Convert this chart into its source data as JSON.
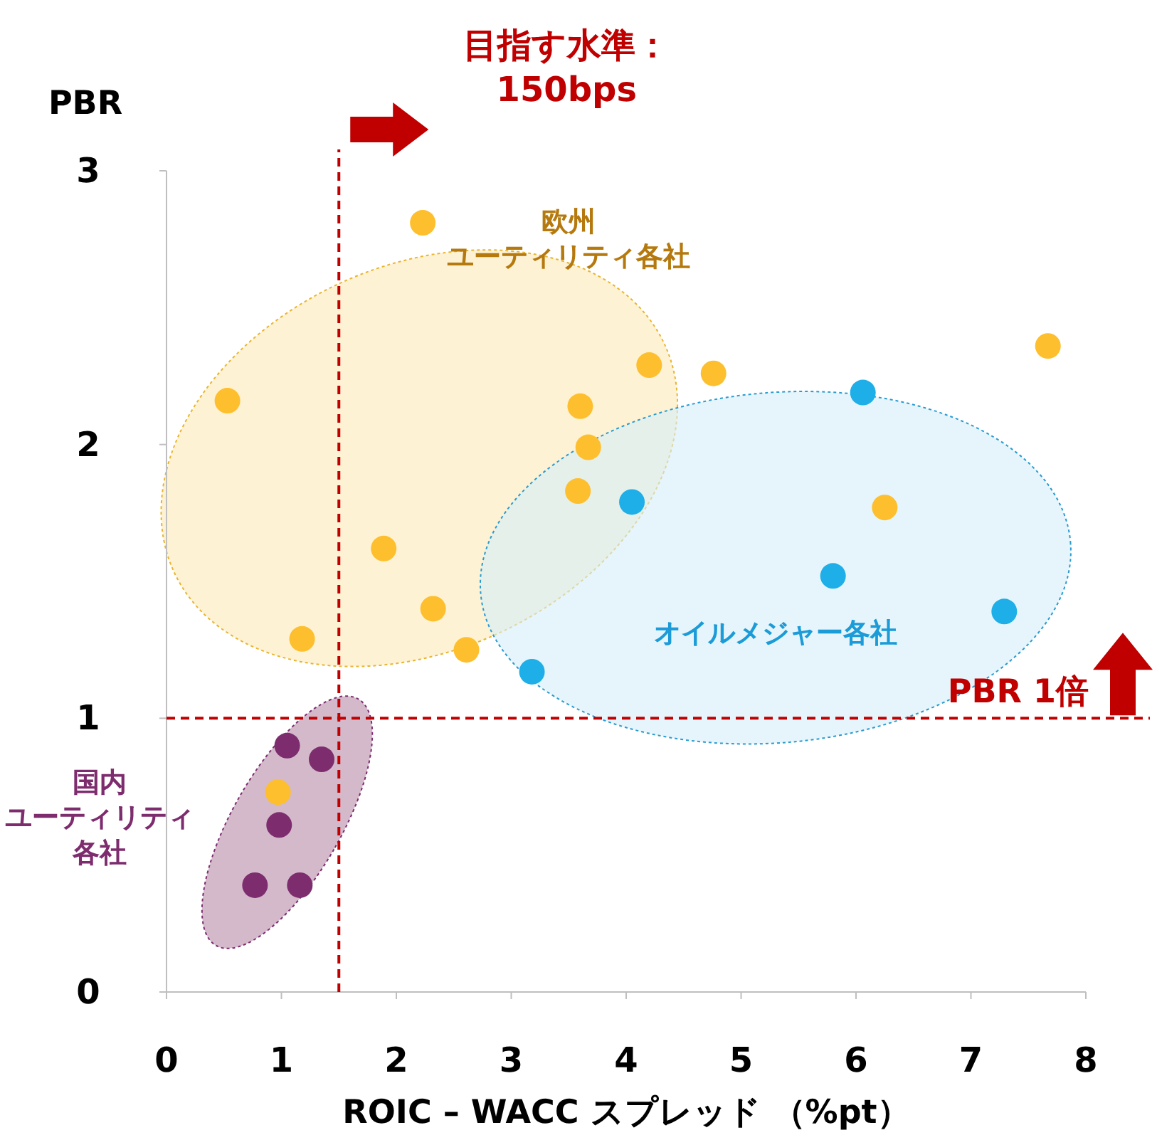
{
  "chart_data": {
    "type": "scatter",
    "xlabel": "ROIC – WACC スプレッド （%pt）",
    "ylabel": "PBR",
    "xlim": [
      0,
      8
    ],
    "ylim": [
      0,
      3
    ],
    "xticks": [
      0,
      1,
      2,
      3,
      4,
      5,
      6,
      7,
      8
    ],
    "yticks": [
      0,
      1,
      2,
      3
    ],
    "grid": false,
    "marker": "circle",
    "series": [
      {
        "name": "欧州ユーティリティ各社",
        "color": "#fdbf2d",
        "x": [
          0.53,
          2.23,
          1.18,
          1.89,
          2.32,
          2.61,
          3.6,
          3.67,
          3.58,
          4.2,
          4.76,
          6.25,
          7.67,
          0.97
        ],
        "values": [
          2.16,
          2.81,
          1.29,
          1.62,
          1.4,
          1.25,
          2.14,
          1.99,
          1.83,
          2.29,
          2.26,
          1.77,
          2.36,
          0.73
        ]
      },
      {
        "name": "オイルメジャー各社",
        "color": "#1eaee8",
        "x": [
          6.06,
          4.05,
          5.8,
          7.29,
          3.18
        ],
        "values": [
          2.19,
          1.79,
          1.52,
          1.39,
          1.17
        ]
      },
      {
        "name": "国内ユーティリティ各社",
        "color": "#7d2c6e",
        "x": [
          1.05,
          1.35,
          0.98,
          0.77,
          1.16
        ],
        "values": [
          0.9,
          0.85,
          0.61,
          0.39,
          0.39
        ]
      }
    ],
    "ref_lines": [
      {
        "axis": "x",
        "value": 1.5,
        "label": "目指す水準：150bps",
        "color": "#c00000",
        "line_style": "dashed"
      },
      {
        "axis": "y",
        "value": 1,
        "label": "PBR 1倍",
        "color": "#c00000",
        "line_style": "dashed"
      }
    ]
  }
}
